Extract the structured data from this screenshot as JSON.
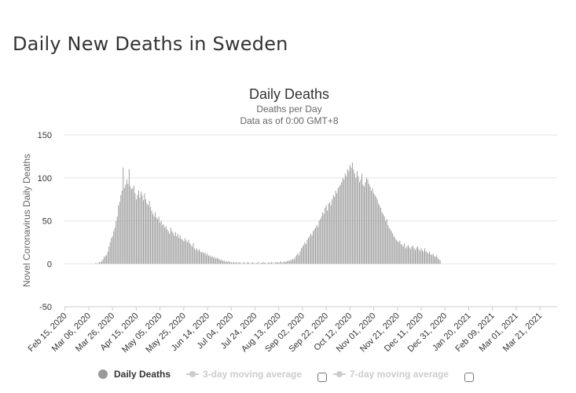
{
  "page": {
    "title": "Daily New Deaths in Sweden"
  },
  "colors": {
    "bar": "#999999",
    "grid": "#e6e6e6",
    "axis": "#cccccc",
    "text": "#333333",
    "muted": "#666666",
    "disabled": "#cccccc"
  },
  "legend": {
    "items": [
      {
        "label": "Daily Deaths",
        "active": true,
        "icon": "circle-icon"
      },
      {
        "label": "3-day moving average",
        "active": false,
        "icon": "line-marker-icon"
      },
      {
        "label": "7-day moving average",
        "active": false,
        "icon": "line-marker-icon"
      }
    ]
  },
  "chart_data": {
    "type": "bar",
    "title": "Daily Deaths",
    "subtitle": "Deaths per Day",
    "subtitle2": "Data as of 0:00 GMT+8",
    "xlabel": "",
    "ylabel": "Novel Coronavirus Daily Deaths",
    "ylim": [
      -50,
      150
    ],
    "yticks": [
      -50,
      0,
      50,
      100,
      150
    ],
    "grid": true,
    "legend_position": "bottom",
    "x_start": "2020-02-15",
    "x_end": "2021-04-04",
    "xtick_labels": [
      "Feb 15, 2020",
      "Mar 06, 2020",
      "Mar 26, 2020",
      "Apr 15, 2020",
      "May 05, 2020",
      "May 25, 2020",
      "Jun 14, 2020",
      "Jul 04, 2020",
      "Jul 24, 2020",
      "Aug 13, 2020",
      "Sep 02, 2020",
      "Sep 22, 2020",
      "Oct 12, 2020",
      "Nov 01, 2020",
      "Nov 21, 2020",
      "Dec 11, 2020",
      "Dec 31, 2020",
      "Jan 20, 2021",
      "Feb 09, 2021",
      "Mar 01, 2021",
      "Mar 21, 2021"
    ],
    "series": [
      {
        "name": "Daily Deaths",
        "values": [
          0,
          0,
          0,
          0,
          0,
          0,
          0,
          0,
          0,
          0,
          0,
          0,
          0,
          0,
          0,
          0,
          0,
          0,
          0,
          0,
          0,
          0,
          0,
          0,
          0,
          0,
          1,
          0,
          1,
          2,
          2,
          3,
          5,
          8,
          9,
          10,
          14,
          20,
          25,
          30,
          32,
          38,
          42,
          50,
          55,
          68,
          72,
          80,
          85,
          112,
          88,
          92,
          98,
          93,
          110,
          90,
          87,
          88,
          91,
          82,
          75,
          80,
          85,
          77,
          84,
          80,
          74,
          82,
          75,
          70,
          68,
          73,
          66,
          62,
          58,
          55,
          60,
          54,
          52,
          55,
          48,
          50,
          45,
          46,
          42,
          44,
          40,
          38,
          35,
          42,
          38,
          36,
          33,
          37,
          32,
          35,
          30,
          33,
          29,
          28,
          26,
          30,
          27,
          25,
          28,
          24,
          22,
          20,
          24,
          18,
          16,
          18,
          15,
          17,
          14,
          13,
          14,
          12,
          13,
          10,
          12,
          9,
          10,
          8,
          9,
          7,
          8,
          6,
          7,
          6,
          5,
          4,
          5,
          3,
          4,
          2,
          3,
          2,
          3,
          2,
          2,
          1,
          2,
          1,
          2,
          1,
          1,
          2,
          1,
          0,
          1,
          2,
          0,
          1,
          2,
          1,
          0,
          1,
          2,
          1,
          0,
          1,
          1,
          2,
          0,
          1,
          1,
          2,
          1,
          1,
          0,
          2,
          1,
          1,
          2,
          1,
          0,
          2,
          1,
          2,
          1,
          2,
          3,
          1,
          2,
          3,
          2,
          3,
          4,
          3,
          5,
          4,
          6,
          5,
          8,
          10,
          12,
          10,
          14,
          18,
          20,
          22,
          25,
          23,
          28,
          30,
          32,
          35,
          33,
          38,
          40,
          42,
          45,
          43,
          50,
          52,
          55,
          60,
          58,
          65,
          68,
          62,
          70,
          72,
          68,
          75,
          80,
          78,
          85,
          82,
          88,
          90,
          92,
          95,
          100,
          98,
          105,
          102,
          110,
          108,
          115,
          112,
          118,
          110,
          105,
          100,
          108,
          102,
          95,
          98,
          105,
          92,
          90,
          95,
          100,
          98,
          93,
          90,
          85,
          88,
          82,
          80,
          78,
          75,
          70,
          68,
          65,
          60,
          58,
          55,
          50,
          52,
          45,
          42,
          40,
          38,
          35,
          32,
          30,
          28,
          26,
          25,
          27,
          23,
          22,
          20,
          24,
          18,
          20,
          22,
          19,
          17,
          20,
          21,
          18,
          16,
          19,
          20,
          17,
          15,
          18,
          16,
          14,
          18,
          15,
          13,
          12,
          14,
          11,
          10,
          12,
          9,
          8,
          10,
          7,
          5,
          4
        ]
      }
    ]
  }
}
